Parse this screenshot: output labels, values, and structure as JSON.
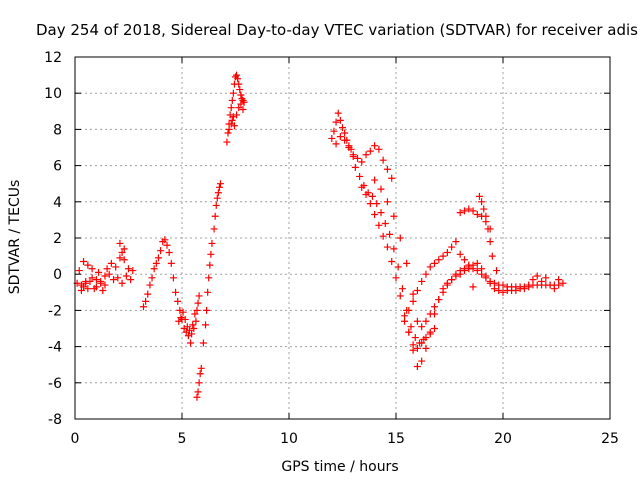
{
  "chart_data": {
    "type": "scatter",
    "title": "Day 254 of 2018, Sidereal Day-to-day VTEC variation (SDTVAR) for receiver adis",
    "xlabel": "GPS time / hours",
    "ylabel": "SDTVAR / TECUs",
    "xlim": [
      0,
      25
    ],
    "ylim": [
      -8,
      12
    ],
    "xticks": [
      0,
      5,
      10,
      15,
      20,
      25
    ],
    "yticks": [
      -8,
      -6,
      -4,
      -2,
      0,
      2,
      4,
      6,
      8,
      10,
      12
    ],
    "grid": true,
    "marker": "plus",
    "color": "#ff0000",
    "series": [
      {
        "name": "SDTVAR",
        "x": [
          0.1,
          0.2,
          0.3,
          0.4,
          0.5,
          0.6,
          0.7,
          0.8,
          0.9,
          1.0,
          1.1,
          1.2,
          1.3,
          1.4,
          0.3,
          0.4,
          0.5,
          0.6,
          0.8,
          1.0,
          1.2,
          1.4,
          1.6,
          1.8,
          2.0,
          2.2,
          2.4,
          2.6,
          1.5,
          1.7,
          1.9,
          2.1,
          2.3,
          2.5,
          2.7,
          2.1,
          2.2,
          2.3,
          3.2,
          3.3,
          3.4,
          3.5,
          3.6,
          3.7,
          3.8,
          3.9,
          4.0,
          4.1,
          4.2,
          4.3,
          4.4,
          4.5,
          4.6,
          4.7,
          4.8,
          4.9,
          5.0,
          5.1,
          5.2,
          5.3,
          5.4,
          5.5,
          4.85,
          4.95,
          5.05,
          5.15,
          5.25,
          5.35,
          5.45,
          5.55,
          5.7,
          5.75,
          5.8,
          5.85,
          5.9,
          5.6,
          5.65,
          5.7,
          5.75,
          5.8,
          6.0,
          6.1,
          6.15,
          6.2,
          6.25,
          6.3,
          6.35,
          6.4,
          6.5,
          6.55,
          6.6,
          6.65,
          6.7,
          6.75,
          6.8,
          7.1,
          7.15,
          7.2,
          7.25,
          7.3,
          7.35,
          7.4,
          7.45,
          7.5,
          7.55,
          7.6,
          7.65,
          7.7,
          7.75,
          7.8,
          7.85,
          7.9,
          7.35,
          7.45,
          7.55,
          7.65,
          7.75,
          7.85,
          7.2,
          7.3,
          7.4,
          12.0,
          12.1,
          12.2,
          12.3,
          12.4,
          12.5,
          12.6,
          12.7,
          12.8,
          12.9,
          13.0,
          12.2,
          12.4,
          12.6,
          12.8,
          13.0,
          13.2,
          13.4,
          13.6,
          13.8,
          14.0,
          14.2,
          14.4,
          14.6,
          14.8,
          13.1,
          13.3,
          13.5,
          13.7,
          13.9,
          14.1,
          14.3,
          14.5,
          14.7,
          14.9,
          15.1,
          15.3,
          15.5,
          15.7,
          15.9,
          16.1,
          16.3,
          13.4,
          13.6,
          13.8,
          14.0,
          14.2,
          14.4,
          14.6,
          14.8,
          15.0,
          15.2,
          15.4,
          15.6,
          15.8,
          16.0,
          16.2,
          16.4,
          16.6,
          16.8,
          14.0,
          14.3,
          14.6,
          14.9,
          15.2,
          15.5,
          15.8,
          16.0,
          16.2,
          16.4,
          16.6,
          16.8,
          17.0,
          17.2,
          17.4,
          17.6,
          17.8,
          18.0,
          18.2,
          18.4,
          18.6,
          18.8,
          19.0,
          19.2,
          19.4,
          19.6,
          19.8,
          20.0,
          20.2,
          20.4,
          20.6,
          20.8,
          21.0,
          21.2,
          21.4,
          21.6,
          21.8,
          22.0,
          22.2,
          22.4,
          22.6,
          22.8,
          15.6,
          15.8,
          16.0,
          16.2,
          16.4,
          16.6,
          16.8,
          17.0,
          17.2,
          17.4,
          17.6,
          17.8,
          18.0,
          18.2,
          18.4,
          18.6,
          18.8,
          19.0,
          19.2,
          19.4,
          19.6,
          19.8,
          20.0,
          20.2,
          20.4,
          20.6,
          20.8,
          21.0,
          21.2,
          21.4,
          21.6,
          21.8,
          22.0,
          22.2,
          22.4,
          22.6,
          18.0,
          18.2,
          18.4,
          18.6,
          18.8,
          19.0,
          19.2,
          19.4,
          18.9,
          19.0,
          19.1,
          19.2,
          19.3,
          19.4,
          19.5,
          19.7,
          15.4,
          15.6,
          15.8,
          16.0,
          16.2,
          16.4,
          16.6,
          16.8,
          17.0,
          17.2,
          17.4,
          17.6,
          17.8,
          18.0,
          18.2,
          18.4,
          18.6
        ],
        "y": [
          -0.5,
          0.2,
          -0.6,
          0.7,
          -0.5,
          0.5,
          -0.4,
          0.3,
          -0.8,
          -0.3,
          0.1,
          -0.5,
          -0.9,
          -0.6,
          -0.9,
          -0.7,
          -0.4,
          -0.8,
          -0.2,
          -0.7,
          -0.4,
          -0.1,
          0.0,
          -0.3,
          -0.2,
          -0.5,
          -0.1,
          -0.3,
          0.3,
          0.6,
          0.4,
          1.7,
          0.8,
          0.3,
          0.2,
          0.9,
          1.2,
          1.4,
          -1.8,
          -1.5,
          -1.1,
          -0.6,
          -0.2,
          0.3,
          0.6,
          0.9,
          1.3,
          1.8,
          1.9,
          1.6,
          1.2,
          0.6,
          -0.2,
          -1.0,
          -1.5,
          -2.0,
          -2.5,
          -3.0,
          -3.2,
          -3.4,
          -3.8,
          -2.8,
          -2.6,
          -2.4,
          -2.1,
          -2.5,
          -2.9,
          -3.1,
          -3.3,
          -3.0,
          -6.8,
          -6.5,
          -6.0,
          -5.5,
          -5.2,
          -2.2,
          -2.6,
          -2.0,
          -1.6,
          -1.2,
          -3.8,
          -2.8,
          -2.0,
          -1.0,
          -0.2,
          0.5,
          1.1,
          1.7,
          2.5,
          3.2,
          3.8,
          4.2,
          4.5,
          4.8,
          5.0,
          7.3,
          7.8,
          8.3,
          8.8,
          9.2,
          9.6,
          10.0,
          10.5,
          10.9,
          11.0,
          10.8,
          10.5,
          10.2,
          9.9,
          9.7,
          9.6,
          9.5,
          8.5,
          8.2,
          8.8,
          9.2,
          9.4,
          9.1,
          8.0,
          8.3,
          8.7,
          7.5,
          7.9,
          8.4,
          8.9,
          8.5,
          8.1,
          7.8,
          7.4,
          7.1,
          6.9,
          6.5,
          7.2,
          7.6,
          7.4,
          7.0,
          6.6,
          6.4,
          6.2,
          6.6,
          6.8,
          7.1,
          6.9,
          6.3,
          5.8,
          5.3,
          5.9,
          5.4,
          4.9,
          4.5,
          4.3,
          3.9,
          3.4,
          2.8,
          2.2,
          1.4,
          0.4,
          -0.8,
          -2.0,
          -2.9,
          -3.5,
          -3.8,
          -3.6,
          4.8,
          4.4,
          3.9,
          3.3,
          2.7,
          2.1,
          1.5,
          0.7,
          -0.2,
          -1.2,
          -2.3,
          -3.2,
          -3.9,
          -4.1,
          -3.8,
          -3.5,
          -3.3,
          -3.0,
          5.2,
          4.7,
          4.0,
          3.2,
          2.0,
          0.6,
          -1.1,
          -2.6,
          -2.9,
          -2.6,
          -2.2,
          -1.8,
          -1.4,
          -1.0,
          -0.6,
          -0.3,
          0.0,
          0.2,
          0.3,
          0.4,
          0.3,
          0.2,
          0.0,
          -0.2,
          -0.4,
          -0.5,
          -0.6,
          -0.6,
          -0.7,
          -0.7,
          -0.7,
          -0.7,
          -0.7,
          -0.7,
          -0.6,
          -0.6,
          -0.6,
          -0.6,
          -0.6,
          -0.6,
          -0.6,
          -0.5,
          -3.2,
          -4.2,
          -5.1,
          -4.8,
          -4.1,
          -3.2,
          -2.2,
          -1.4,
          -0.8,
          -0.5,
          -0.3,
          -0.1,
          0.0,
          0.2,
          0.3,
          0.5,
          0.6,
          0.3,
          -0.1,
          -0.5,
          -0.8,
          -0.9,
          -1.0,
          -0.9,
          -0.9,
          -0.9,
          -0.8,
          -0.8,
          -0.6,
          -0.3,
          -0.1,
          -0.4,
          -0.2,
          -0.6,
          -0.8,
          -0.3,
          3.4,
          3.5,
          3.6,
          3.5,
          3.3,
          3.2,
          2.9,
          2.5,
          4.3,
          4.0,
          3.6,
          3.2,
          2.5,
          1.8,
          1.0,
          0.2,
          -2.6,
          -2.0,
          -1.5,
          -0.9,
          -0.4,
          0.0,
          0.4,
          0.6,
          0.8,
          1.0,
          1.2,
          1.5,
          1.8,
          1.1,
          0.8,
          0.5,
          -0.7
        ]
      }
    ]
  }
}
